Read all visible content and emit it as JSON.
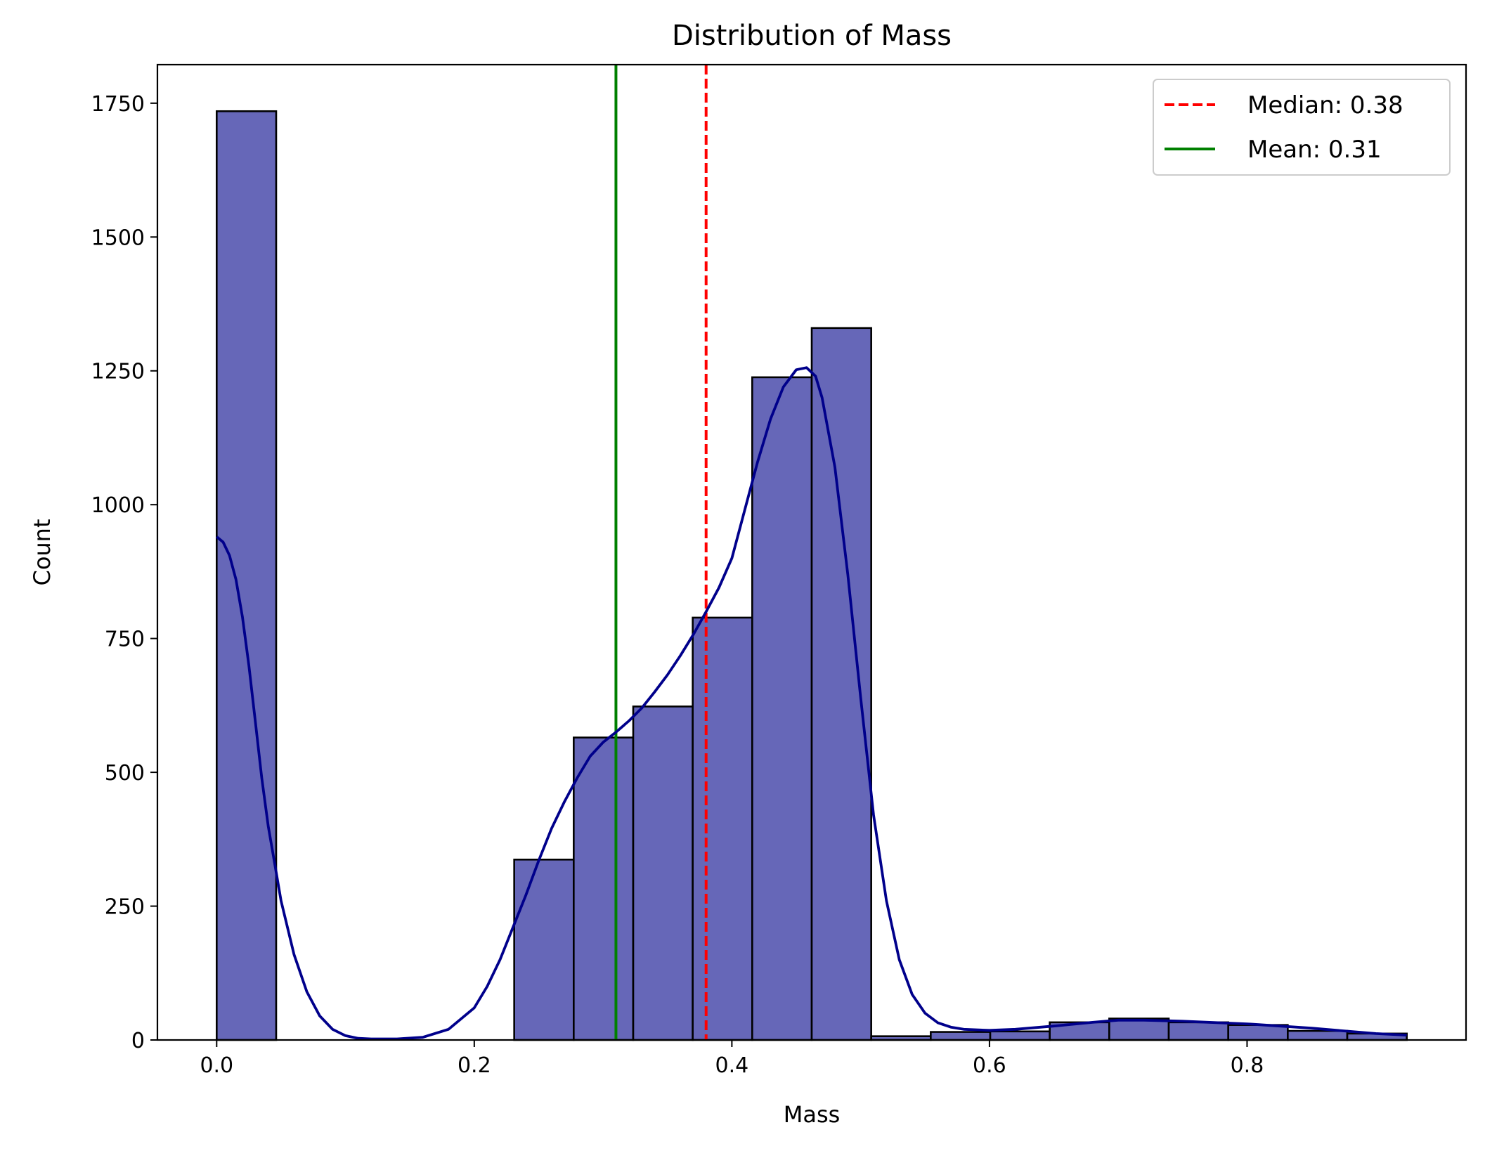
{
  "chart_data": {
    "type": "bar",
    "title": "Distribution of Mass",
    "xlabel": "Mass",
    "ylabel": "Count",
    "xlim": [
      -0.046,
      0.97
    ],
    "ylim": [
      0,
      1822
    ],
    "xticks": [
      0.0,
      0.2,
      0.4,
      0.6,
      0.8
    ],
    "xtick_labels": [
      "0.0",
      "0.2",
      "0.4",
      "0.6",
      "0.8"
    ],
    "yticks": [
      0,
      250,
      500,
      750,
      1000,
      1250,
      1500,
      1750
    ],
    "ytick_labels": [
      "0",
      "250",
      "500",
      "750",
      "1000",
      "1250",
      "1500",
      "1750"
    ],
    "grid": false,
    "legend_position": "top-right",
    "bar_color": "#6667b8",
    "bar_edge_color": "#000000",
    "bins": {
      "edges": [
        0.0,
        0.0462,
        0.0924,
        0.1386,
        0.1848,
        0.231,
        0.2772,
        0.3234,
        0.3696,
        0.4158,
        0.462,
        0.5082,
        0.5544,
        0.6006,
        0.6468,
        0.693,
        0.7392,
        0.7854,
        0.8316,
        0.8778,
        0.924
      ],
      "counts": [
        1735,
        0,
        0,
        0,
        0,
        337,
        565,
        623,
        789,
        1238,
        1330,
        7,
        15,
        16,
        33,
        40,
        33,
        28,
        17,
        12
      ]
    },
    "kde": {
      "color": "#00008b",
      "x": [
        0.0,
        0.005,
        0.01,
        0.015,
        0.02,
        0.025,
        0.03,
        0.035,
        0.04,
        0.045,
        0.05,
        0.06,
        0.07,
        0.08,
        0.09,
        0.1,
        0.11,
        0.12,
        0.14,
        0.16,
        0.18,
        0.2,
        0.21,
        0.22,
        0.23,
        0.24,
        0.25,
        0.26,
        0.27,
        0.28,
        0.29,
        0.3,
        0.31,
        0.32,
        0.33,
        0.34,
        0.35,
        0.36,
        0.37,
        0.38,
        0.39,
        0.4,
        0.41,
        0.42,
        0.43,
        0.44,
        0.45,
        0.458,
        0.465,
        0.47,
        0.48,
        0.49,
        0.5,
        0.51,
        0.52,
        0.53,
        0.54,
        0.55,
        0.56,
        0.57,
        0.58,
        0.6,
        0.62,
        0.65,
        0.68,
        0.7,
        0.72,
        0.75,
        0.8,
        0.85,
        0.9,
        0.924
      ],
      "y": [
        940,
        930,
        905,
        860,
        790,
        700,
        595,
        490,
        400,
        330,
        260,
        160,
        90,
        45,
        20,
        8,
        3,
        2,
        2,
        5,
        20,
        60,
        100,
        150,
        210,
        270,
        335,
        395,
        445,
        490,
        530,
        556,
        575,
        596,
        620,
        650,
        682,
        718,
        757,
        800,
        845,
        900,
        990,
        1080,
        1160,
        1220,
        1252,
        1256,
        1240,
        1200,
        1070,
        870,
        640,
        420,
        260,
        150,
        85,
        50,
        32,
        24,
        20,
        18,
        20,
        26,
        33,
        37,
        37,
        35,
        30,
        22,
        12,
        9
      ]
    },
    "lines": [
      {
        "name": "Median: 0.38",
        "value": 0.38,
        "color": "#ff0000",
        "style": "dashed"
      },
      {
        "name": "Mean: 0.31",
        "value": 0.31,
        "color": "#008000",
        "style": "solid"
      }
    ]
  }
}
